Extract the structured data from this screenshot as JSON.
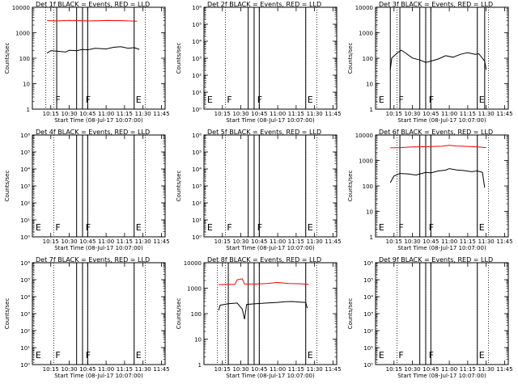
{
  "chart_data": [
    {
      "type": "line",
      "title": "Det 1f BLACK = Events, RED = LLD",
      "xlabel": "Start Time (08-Jul-17 10:07:00)",
      "ylabel": "Counts/sec",
      "yscale": "log",
      "ylim": [
        1,
        14000
      ],
      "yticks": [
        "1",
        "10",
        "100",
        "1000",
        "10000"
      ],
      "xlim": [
        10.0,
        11.8
      ],
      "xticks": [
        "10:15",
        "10:30",
        "10:45",
        "11:00",
        "11:15",
        "11:30",
        "11:45"
      ],
      "markers": [
        {
          "label": "F",
          "x": 10.29
        },
        {
          "label": "F",
          "x": 10.7
        },
        {
          "label": "E",
          "x": 11.38
        }
      ],
      "dotted_x": [
        10.18,
        10.29,
        10.68,
        10.75,
        11.38,
        11.53,
        11.83
      ],
      "solid_x": [
        10.33,
        10.6,
        10.68,
        10.75,
        11.38
      ],
      "series": [
        {
          "color": "#ff0000",
          "points": [
            [
              10.2,
              4000
            ],
            [
              10.33,
              3900
            ],
            [
              10.5,
              4100
            ],
            [
              10.6,
              4000
            ],
            [
              10.75,
              3900
            ],
            [
              11.0,
              4050
            ],
            [
              11.2,
              4000
            ],
            [
              11.42,
              3800
            ]
          ]
        },
        {
          "color": "#000000",
          "points": [
            [
              10.2,
              190
            ],
            [
              10.25,
              240
            ],
            [
              10.33,
              230
            ],
            [
              10.45,
              210
            ],
            [
              10.5,
              250
            ],
            [
              10.6,
              240
            ],
            [
              10.68,
              270
            ],
            [
              10.75,
              260
            ],
            [
              10.85,
              300
            ],
            [
              11.0,
              280
            ],
            [
              11.1,
              330
            ],
            [
              11.2,
              350
            ],
            [
              11.3,
              300
            ],
            [
              11.38,
              320
            ],
            [
              11.45,
              270
            ]
          ]
        }
      ]
    },
    {
      "type": "line",
      "title": "Det 2f BLACK = Events, RED = LLD",
      "xlabel": "Start Time (08-Jul-17 10:07:00)",
      "ylabel": "Counts/sec",
      "yscale": "log",
      "ylim": [
        1,
        1000000
      ],
      "yticks": [
        "10⁰",
        "10¹",
        "10²",
        "10³",
        "10⁴",
        "10⁵",
        "10⁶"
      ],
      "xlim": [
        10.0,
        11.8
      ],
      "xticks": [
        "10:15",
        "10:30",
        "10:45",
        "11:00",
        "11:15",
        "11:30",
        "11:45"
      ],
      "markers": [
        {
          "label": "E",
          "x": 10.02
        },
        {
          "label": "F",
          "x": 10.29
        },
        {
          "label": "F",
          "x": 10.7
        },
        {
          "label": "E",
          "x": 11.38
        }
      ],
      "dotted_x": [
        10.02,
        10.29,
        10.68,
        10.75,
        11.38,
        11.53,
        11.83
      ],
      "solid_x": [
        10.6,
        10.68,
        10.75,
        11.38
      ],
      "series": []
    },
    {
      "type": "line",
      "title": "Det 3f BLACK = Events, RED = LLD",
      "xlabel": "Start Time (08-Jul-17 10:07:00)",
      "ylabel": "Counts/sec",
      "yscale": "log",
      "ylim": [
        1,
        14000
      ],
      "yticks": [
        "1",
        "10",
        "100",
        "1000",
        "10000"
      ],
      "xlim": [
        10.0,
        11.8
      ],
      "xticks": [
        "10:15",
        "10:30",
        "10:45",
        "11:00",
        "11:15",
        "11:30",
        "11:45"
      ],
      "markers": [
        {
          "label": "E",
          "x": 10.02
        },
        {
          "label": "F",
          "x": 10.29
        },
        {
          "label": "F",
          "x": 10.7
        },
        {
          "label": "E",
          "x": 11.38
        }
      ],
      "dotted_x": [
        10.02,
        10.29,
        10.68,
        10.75,
        11.38,
        11.53,
        11.83
      ],
      "solid_x": [
        10.2,
        10.33,
        10.6,
        10.68,
        10.75,
        11.38,
        11.48
      ],
      "series": [
        {
          "color": "#000000",
          "points": [
            [
              10.2,
              40
            ],
            [
              10.22,
              120
            ],
            [
              10.3,
              200
            ],
            [
              10.35,
              250
            ],
            [
              10.4,
              200
            ],
            [
              10.5,
              120
            ],
            [
              10.6,
              100
            ],
            [
              10.68,
              80
            ],
            [
              10.75,
              90
            ],
            [
              10.85,
              110
            ],
            [
              10.95,
              150
            ],
            [
              11.05,
              130
            ],
            [
              11.15,
              170
            ],
            [
              11.25,
              200
            ],
            [
              11.35,
              170
            ],
            [
              11.4,
              180
            ],
            [
              11.48,
              90
            ],
            [
              11.5,
              40
            ]
          ]
        }
      ]
    },
    {
      "type": "line",
      "title": "Det 4f BLACK = Events, RED = LLD",
      "xlabel": "Start Time (08-Jul-17 10:07:00)",
      "ylabel": "Counts/sec",
      "yscale": "log",
      "ylim": [
        1,
        1000000
      ],
      "yticks": [
        "10⁰",
        "10¹",
        "10²",
        "10³",
        "10⁴",
        "10⁵",
        "10⁶"
      ],
      "xlim": [
        10.0,
        11.8
      ],
      "xticks": [
        "10:15",
        "10:30",
        "10:45",
        "11:00",
        "11:15",
        "11:30",
        "11:45"
      ],
      "markers": [
        {
          "label": "E",
          "x": 10.02
        },
        {
          "label": "F",
          "x": 10.29
        },
        {
          "label": "F",
          "x": 10.7
        },
        {
          "label": "E",
          "x": 11.38
        }
      ],
      "dotted_x": [
        10.02,
        10.29,
        10.68,
        10.75,
        11.38,
        11.53,
        11.83
      ],
      "solid_x": [
        10.6,
        10.68,
        10.75,
        11.38
      ],
      "series": []
    },
    {
      "type": "line",
      "title": "Det 5f BLACK = Events, RED = LLD",
      "xlabel": "Start Time (08-Jul-17 10:07:00)",
      "ylabel": "Counts/sec",
      "yscale": "log",
      "ylim": [
        1,
        1000000
      ],
      "yticks": [
        "10⁰",
        "10¹",
        "10²",
        "10³",
        "10⁴",
        "10⁵",
        "10⁶"
      ],
      "xlim": [
        10.0,
        11.8
      ],
      "xticks": [
        "10:15",
        "10:30",
        "10:45",
        "11:00",
        "11:15",
        "11:30",
        "11:45"
      ],
      "markers": [
        {
          "label": "E",
          "x": 10.02
        },
        {
          "label": "F",
          "x": 10.29
        },
        {
          "label": "F",
          "x": 10.7
        },
        {
          "label": "E",
          "x": 11.38
        }
      ],
      "dotted_x": [
        10.02,
        10.29,
        10.68,
        10.75,
        11.38,
        11.53,
        11.83
      ],
      "solid_x": [
        10.6,
        10.68,
        10.75,
        11.38
      ],
      "series": []
    },
    {
      "type": "line",
      "title": "Det 6f BLACK = Events, RED = LLD",
      "xlabel": "Start Time (08-Jul-17 10:07:00)",
      "ylabel": "Counts/sec",
      "yscale": "log",
      "ylim": [
        1,
        14000
      ],
      "yticks": [
        "1",
        "10",
        "100",
        "1000",
        "10000"
      ],
      "xlim": [
        10.0,
        11.8
      ],
      "xticks": [
        "10:15",
        "10:30",
        "10:45",
        "11:00",
        "11:15",
        "11:30",
        "11:45"
      ],
      "markers": [
        {
          "label": "E",
          "x": 10.02
        },
        {
          "label": "F",
          "x": 10.29
        },
        {
          "label": "F",
          "x": 10.7
        },
        {
          "label": "E",
          "x": 11.38
        }
      ],
      "dotted_x": [
        10.02,
        10.29,
        10.68,
        10.75,
        11.38,
        11.53,
        11.83
      ],
      "solid_x": [
        10.33,
        10.6,
        10.68,
        10.75,
        11.38
      ],
      "series": [
        {
          "color": "#ff0000",
          "points": [
            [
              10.2,
              4200
            ],
            [
              10.33,
              4300
            ],
            [
              10.5,
              4600
            ],
            [
              10.7,
              4700
            ],
            [
              10.9,
              4900
            ],
            [
              11.0,
              5300
            ],
            [
              11.1,
              5000
            ],
            [
              11.25,
              4800
            ],
            [
              11.38,
              4600
            ],
            [
              11.5,
              4300
            ]
          ]
        },
        {
          "color": "#000000",
          "points": [
            [
              10.2,
              160
            ],
            [
              10.25,
              300
            ],
            [
              10.33,
              380
            ],
            [
              10.45,
              360
            ],
            [
              10.55,
              330
            ],
            [
              10.68,
              420
            ],
            [
              10.75,
              400
            ],
            [
              10.85,
              480
            ],
            [
              10.95,
              520
            ],
            [
              11.0,
              600
            ],
            [
              11.1,
              530
            ],
            [
              11.2,
              500
            ],
            [
              11.3,
              450
            ],
            [
              11.38,
              480
            ],
            [
              11.45,
              420
            ],
            [
              11.48,
              100
            ]
          ]
        }
      ]
    },
    {
      "type": "line",
      "title": "Det 7f BLACK = Events, RED = LLD",
      "xlabel": "Start Time (08-Jul-17 10:07:00)",
      "ylabel": "Counts/sec",
      "yscale": "log",
      "ylim": [
        1,
        1000000
      ],
      "yticks": [
        "10⁰",
        "10¹",
        "10²",
        "10³",
        "10⁴",
        "10⁵",
        "10⁶"
      ],
      "xlim": [
        10.0,
        11.8
      ],
      "xticks": [
        "10:15",
        "10:30",
        "10:45",
        "11:00",
        "11:15",
        "11:30",
        "11:45"
      ],
      "markers": [
        {
          "label": "E",
          "x": 10.02
        },
        {
          "label": "F",
          "x": 10.29
        },
        {
          "label": "F",
          "x": 10.7
        },
        {
          "label": "E",
          "x": 11.38
        }
      ],
      "dotted_x": [
        10.02,
        10.29,
        10.68,
        10.75,
        11.38,
        11.53,
        11.83
      ],
      "solid_x": [
        10.6,
        10.68,
        10.75,
        11.38
      ],
      "series": []
    },
    {
      "type": "line",
      "title": "Det 8f BLACK = Events, RED = LLD",
      "xlabel": "Start Time (08-Jul-17 10:07:00)",
      "ylabel": "Counts/sec",
      "yscale": "log",
      "ylim": [
        1,
        14000
      ],
      "yticks": [
        "1",
        "10",
        "100",
        "1000",
        "10000"
      ],
      "xlim": [
        10.0,
        11.8
      ],
      "xticks": [
        "10:15",
        "10:30",
        "10:45",
        "11:00",
        "11:15",
        "11:30",
        "11:45"
      ],
      "markers": [
        {
          "label": "E",
          "x": 11.38
        }
      ],
      "dotted_x": [
        10.18,
        10.29,
        10.68,
        10.75,
        11.38,
        11.53,
        11.83
      ],
      "solid_x": [
        10.33,
        10.6,
        10.68,
        10.75,
        11.38
      ],
      "series": [
        {
          "color": "#ff0000",
          "points": [
            [
              10.2,
              1800
            ],
            [
              10.35,
              1850
            ],
            [
              10.42,
              1850
            ],
            [
              10.45,
              2800
            ],
            [
              10.52,
              3100
            ],
            [
              10.55,
              1900
            ],
            [
              10.7,
              1900
            ],
            [
              10.85,
              2000
            ],
            [
              11.0,
              2200
            ],
            [
              11.15,
              2000
            ],
            [
              11.3,
              1950
            ],
            [
              11.42,
              1850
            ]
          ]
        },
        {
          "color": "#000000",
          "points": [
            [
              10.2,
              160
            ],
            [
              10.22,
              260
            ],
            [
              10.33,
              300
            ],
            [
              10.45,
              320
            ],
            [
              10.52,
              180
            ],
            [
              10.55,
              70
            ],
            [
              10.58,
              280
            ],
            [
              10.7,
              300
            ],
            [
              10.85,
              320
            ],
            [
              11.0,
              340
            ],
            [
              11.1,
              360
            ],
            [
              11.2,
              370
            ],
            [
              11.3,
              350
            ],
            [
              11.38,
              340
            ],
            [
              11.4,
              200
            ]
          ]
        }
      ]
    },
    {
      "type": "line",
      "title": "Det 9f BLACK = Events, RED = LLD",
      "xlabel": "Start Time (08-Jul-17 10:07:00)",
      "ylabel": "Counts/sec",
      "yscale": "log",
      "ylim": [
        1,
        1000000
      ],
      "yticks": [
        "10⁰",
        "10¹",
        "10²",
        "10³",
        "10⁴",
        "10⁵",
        "10⁶"
      ],
      "xlim": [
        10.0,
        11.8
      ],
      "xticks": [
        "10:15",
        "10:30",
        "10:45",
        "11:00",
        "11:15",
        "11:30",
        "11:45"
      ],
      "markers": [
        {
          "label": "E",
          "x": 10.02
        },
        {
          "label": "F",
          "x": 10.29
        },
        {
          "label": "F",
          "x": 10.7
        },
        {
          "label": "E",
          "x": 11.38
        }
      ],
      "dotted_x": [
        10.02,
        10.29,
        10.68,
        10.75,
        11.38,
        11.53,
        11.83
      ],
      "solid_x": [
        10.6,
        10.68,
        10.75,
        11.38
      ],
      "series": []
    }
  ]
}
